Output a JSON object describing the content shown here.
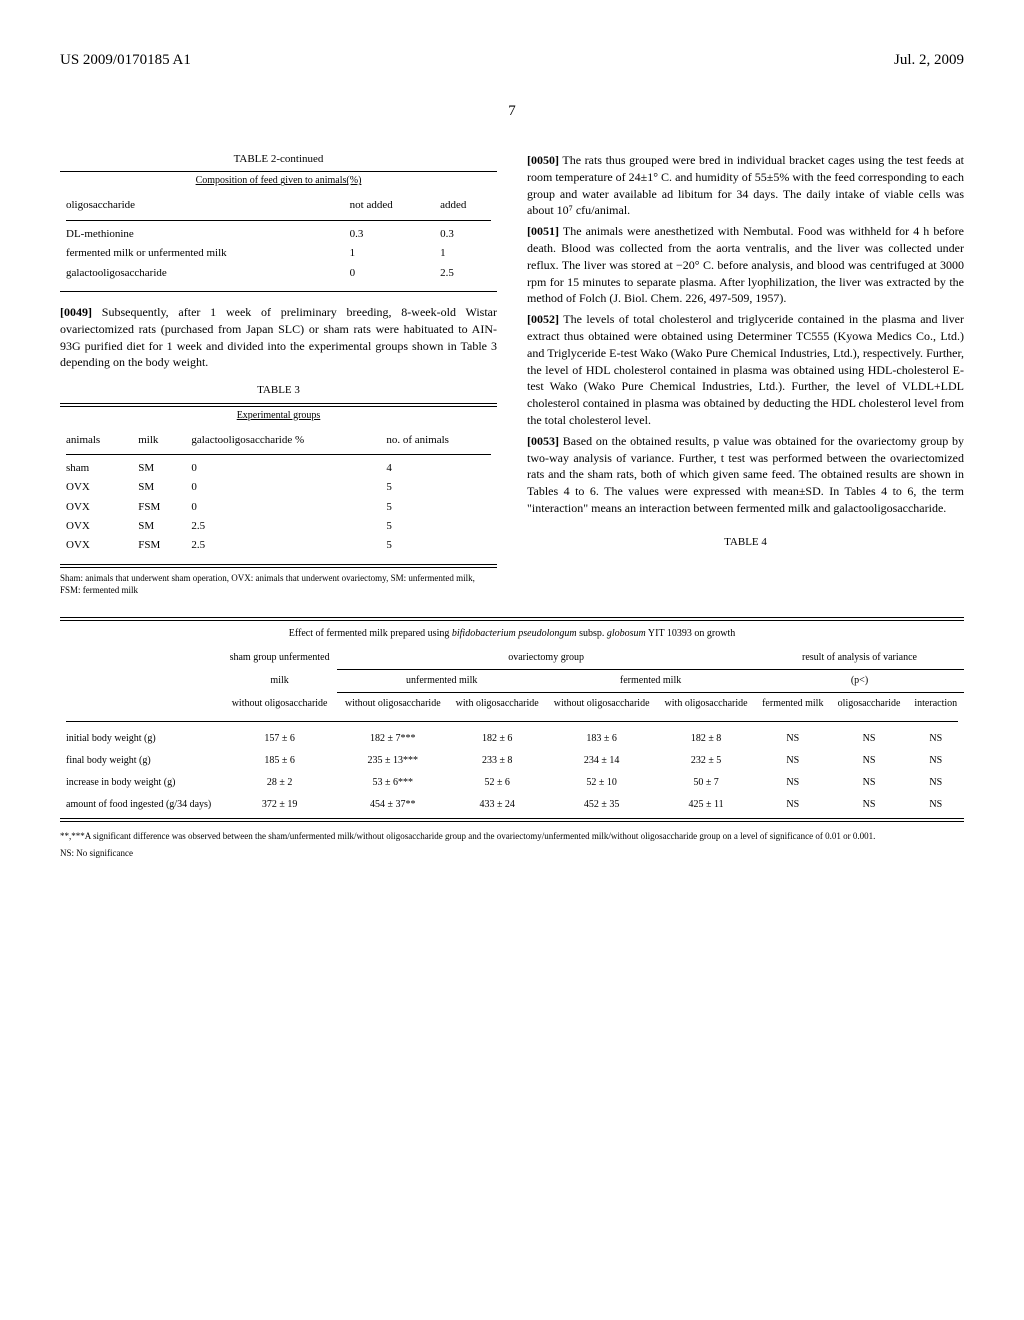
{
  "header": {
    "pub_number": "US 2009/0170185 A1",
    "date": "Jul. 2, 2009",
    "page": "7"
  },
  "table2": {
    "caption": "TABLE 2-continued",
    "subtitle": "Composition of feed given to animals(%)",
    "col_headers": [
      "oligosaccharide",
      "not added",
      "added"
    ],
    "rows": [
      [
        "DL-methionine",
        "0.3",
        "0.3"
      ],
      [
        "fermented milk or unfermented milk",
        "1",
        "1"
      ],
      [
        "galactooligosaccharide",
        "0",
        "2.5"
      ]
    ]
  },
  "para49": {
    "label": "[0049]",
    "text": "Subsequently, after 1 week of preliminary breeding, 8-week-old Wistar ovariectomized rats (purchased from Japan SLC) or sham rats were habituated to AIN-93G purified diet for 1 week and divided into the experimental groups shown in Table 3 depending on the body weight."
  },
  "table3": {
    "caption": "TABLE 3",
    "subtitle": "Experimental groups",
    "col_headers": [
      "animals",
      "milk",
      "galactooligosaccharide %",
      "no. of animals"
    ],
    "rows": [
      [
        "sham",
        "SM",
        "0",
        "4"
      ],
      [
        "OVX",
        "SM",
        "0",
        "5"
      ],
      [
        "OVX",
        "FSM",
        "0",
        "5"
      ],
      [
        "OVX",
        "SM",
        "2.5",
        "5"
      ],
      [
        "OVX",
        "FSM",
        "2.5",
        "5"
      ]
    ],
    "footnote": "Sham: animals that underwent sham operation, OVX: animals that underwent ovariectomy, SM: unfermented milk, FSM: fermented milk"
  },
  "para50": {
    "label": "[0050]",
    "text": "The rats thus grouped were bred in individual bracket cages using the test feeds at room temperature of 24±1° C. and humidity of 55±5% with the feed corresponding to each group and water available ad libitum for 34 days. The daily intake of viable cells was about 10⁷ cfu/animal."
  },
  "para51": {
    "label": "[0051]",
    "text": "The animals were anesthetized with Nembutal. Food was withheld for 4 h before death. Blood was collected from the aorta ventralis, and the liver was collected under reflux. The liver was stored at −20° C. before analysis, and blood was centrifuged at 3000 rpm for 15 minutes to separate plasma. After lyophilization, the liver was extracted by the method of Folch (J. Biol. Chem. 226, 497-509, 1957)."
  },
  "para52": {
    "label": "[0052]",
    "text": "The levels of total cholesterol and triglyceride contained in the plasma and liver extract thus obtained were obtained using Determiner TC555 (Kyowa Medics Co., Ltd.) and Triglyceride E-test Wako (Wako Pure Chemical Industries, Ltd.), respectively. Further, the level of HDL cholesterol contained in plasma was obtained using HDL-cholesterol E-test Wako (Wako Pure Chemical Industries, Ltd.). Further, the level of VLDL+LDL cholesterol contained in plasma was obtained by deducting the HDL cholesterol level from the total cholesterol level."
  },
  "para53": {
    "label": "[0053]",
    "text": "Based on the obtained results, p value was obtained for the ovariectomy group by two-way analysis of variance. Further, t test was performed between the ovariectomized rats and the sham rats, both of which given same feed. The obtained results are shown in Tables 4 to 6. The values were expressed with mean±SD. In Tables 4 to 6, the term \"interaction\" means an interaction between fermented milk and galactooligosaccharide."
  },
  "table4": {
    "caption": "TABLE 4",
    "subtitle_pre": "Effect of fermented milk prepared using ",
    "subtitle_italic": "bifidobacterium pseudolongum",
    "subtitle_mid": " subsp. ",
    "subtitle_italic2": "globosum",
    "subtitle_post": " YIT 10393 on growth",
    "group_headers": {
      "sham": "sham group unfermented",
      "ovariectomy": "ovariectomy group",
      "result": "result of analysis of variance"
    },
    "sub_headers": {
      "milk": "milk",
      "unfermented": "unfermented milk",
      "fermented": "fermented milk",
      "p": "(p<)"
    },
    "leaf_headers": {
      "without_oligo": "without oligosaccharide",
      "with_oligo": "with oligosaccharide",
      "fermented_milk": "fermented milk",
      "oligosaccharide": "oligosaccharide",
      "interaction": "interaction"
    },
    "rows": [
      {
        "label": "initial body weight (g)",
        "sham": "157 ± 6",
        "uf_wo": "182 ± 7***",
        "uf_w": "182 ± 6",
        "f_wo": "183 ± 6",
        "f_w": "182 ± 8",
        "fm": "NS",
        "oligo": "NS",
        "int": "NS"
      },
      {
        "label": "final body weight (g)",
        "sham": "185 ± 6",
        "uf_wo": "235 ± 13***",
        "uf_w": "233 ± 8",
        "f_wo": "234 ± 14",
        "f_w": "232 ± 5",
        "fm": "NS",
        "oligo": "NS",
        "int": "NS"
      },
      {
        "label": "increase in body weight (g)",
        "sham": "28 ± 2",
        "uf_wo": "53 ± 6***",
        "uf_w": "52 ± 6",
        "f_wo": "52 ± 10",
        "f_w": "50 ± 7",
        "fm": "NS",
        "oligo": "NS",
        "int": "NS"
      },
      {
        "label": "amount of food ingested (g/34 days)",
        "sham": "372 ± 19",
        "uf_wo": "454 ± 37**",
        "uf_w": "433 ± 24",
        "f_wo": "452 ± 35",
        "f_w": "425 ± 11",
        "fm": "NS",
        "oligo": "NS",
        "int": "NS"
      }
    ],
    "footnote1": "**,***A significant difference was observed between the sham/unfermented milk/without oligosaccharide group and the ovariectomy/unfermented milk/without oligosaccharide group on a level of significance of 0.01 or 0.001.",
    "footnote2": "NS: No significance"
  }
}
